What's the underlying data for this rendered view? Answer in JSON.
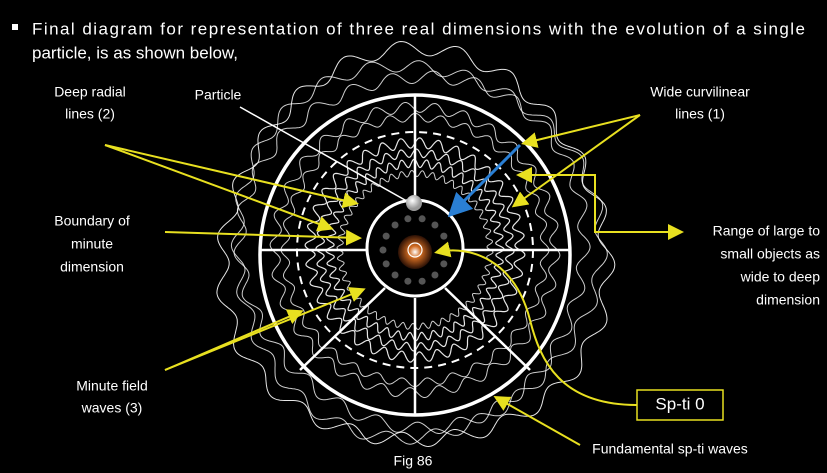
{
  "bullet": {
    "lines": [
      "Final diagram for representation of three real dimensions with the evolution of a single",
      "particle, is as shown below,"
    ]
  },
  "labels": {
    "deep_radial": [
      "Deep radial",
      "lines (2)"
    ],
    "particle": [
      "Particle"
    ],
    "wide_curvilinear": [
      "Wide curvilinear",
      "lines (1)"
    ],
    "boundary": [
      "Boundary of",
      "minute",
      "dimension"
    ],
    "range": [
      "Range of large to",
      "small objects as",
      "wide to deep",
      "dimension"
    ],
    "minute_field": [
      "Minute field",
      "waves (3)"
    ],
    "spti0": [
      "Sp-ti 0"
    ],
    "fundamental": [
      "Fundamental sp-ti waves"
    ]
  },
  "caption": "Fig 86"
}
